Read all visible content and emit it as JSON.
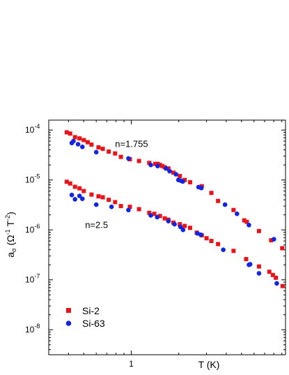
{
  "chart_data": {
    "type": "scatter",
    "x_scale": "log",
    "y_scale": "log",
    "xlim": [
      0.3,
      9.5
    ],
    "ylim": [
      3.16e-09,
      0.000158
    ],
    "x_major_ticks": [
      {
        "value": 1,
        "label": "1"
      }
    ],
    "y_major_ticks": [
      {
        "value": 0.0001,
        "mant": "10",
        "exp": "-4"
      },
      {
        "value": 1e-05,
        "mant": "10",
        "exp": "-5"
      },
      {
        "value": 1e-06,
        "mant": "10",
        "exp": "-6"
      },
      {
        "value": 1e-07,
        "mant": "10",
        "exp": "-7"
      },
      {
        "value": 1e-08,
        "mant": "10",
        "exp": "-8"
      }
    ],
    "xlabel": "T (K)",
    "ylabel": {
      "a": "a",
      "sub": "σ",
      "open": " (Ω",
      "exp1": "-1",
      "mid": " T",
      "exp2": "-2",
      "close": ")"
    },
    "annotations": [
      {
        "text": "n=1.755",
        "x": 0.79,
        "y": 4.6e-05
      },
      {
        "text": "n=2.5",
        "x": 0.51,
        "y": 1.1e-06
      }
    ],
    "legend": {
      "position": "bottom-left"
    },
    "series": [
      {
        "name": "Si-2",
        "marker": "square",
        "color": "#e8141b",
        "points": [
          [
            0.39,
            9e-05
          ],
          [
            0.41,
            8.5e-05
          ],
          [
            0.44,
            7.2e-05
          ],
          [
            0.47,
            6.8e-05
          ],
          [
            0.5,
            6.3e-05
          ],
          [
            0.53,
            5.7e-05
          ],
          [
            0.56,
            5.1e-05
          ],
          [
            0.62,
            4.5e-05
          ],
          [
            0.66,
            4.2e-05
          ],
          [
            0.72,
            3.7e-05
          ],
          [
            0.79,
            3.4e-05
          ],
          [
            0.86,
            2.9e-05
          ],
          [
            0.98,
            2.6e-05
          ],
          [
            1.12,
            2.4e-05
          ],
          [
            1.3,
            2.2e-05
          ],
          [
            1.42,
            2.1e-05
          ],
          [
            1.47,
            2.1e-05
          ],
          [
            1.52,
            2e-05
          ],
          [
            1.57,
            1.9e-05
          ],
          [
            1.63,
            1.8e-05
          ],
          [
            1.72,
            1.7e-05
          ],
          [
            1.85,
            1.4e-05
          ],
          [
            2.03,
            1.2e-05
          ],
          [
            2.18,
            1e-05
          ],
          [
            2.36,
            9e-06
          ],
          [
            2.8,
            7.5e-06
          ],
          [
            3.22,
            5.5e-06
          ],
          [
            3.55,
            3.8e-06
          ],
          [
            4.45,
            2.5e-06
          ],
          [
            5.2,
            1.55e-06
          ],
          [
            5.4,
            1.45e-06
          ],
          [
            6.45,
            9.5e-07
          ],
          [
            7.7,
            6.2e-07
          ],
          [
            9.05,
            4.3e-07
          ],
          [
            0.39,
            9.2e-06
          ],
          [
            0.41,
            8.5e-06
          ],
          [
            0.44,
            7.3e-06
          ],
          [
            0.47,
            6.8e-06
          ],
          [
            0.5,
            6e-06
          ],
          [
            0.56,
            5.1e-06
          ],
          [
            0.62,
            4.7e-06
          ],
          [
            0.66,
            4.5e-06
          ],
          [
            0.72,
            4e-06
          ],
          [
            0.79,
            3.6e-06
          ],
          [
            0.86,
            3e-06
          ],
          [
            0.98,
            2.9e-06
          ],
          [
            1.12,
            2.6e-06
          ],
          [
            1.3,
            2.2e-06
          ],
          [
            1.4,
            2.1e-06
          ],
          [
            1.52,
            1.9e-06
          ],
          [
            1.63,
            1.7e-06
          ],
          [
            1.72,
            1.6e-06
          ],
          [
            1.85,
            1.4e-06
          ],
          [
            2.03,
            1.3e-06
          ],
          [
            2.18,
            1.2e-06
          ],
          [
            2.36,
            1.1e-06
          ],
          [
            2.6,
            8.8e-07
          ],
          [
            2.8,
            7.8e-07
          ],
          [
            3.0,
            6.8e-07
          ],
          [
            3.22,
            6e-07
          ],
          [
            3.55,
            5.2e-07
          ],
          [
            4.45,
            3.8e-07
          ],
          [
            5.35,
            2.6e-07
          ],
          [
            6.45,
            1.85e-07
          ],
          [
            7.5,
            1.45e-07
          ],
          [
            7.9,
            1.25e-07
          ],
          [
            8.25,
            1.1e-07
          ],
          [
            9.1,
            7.5e-08
          ]
        ]
      },
      {
        "name": "Si-63",
        "marker": "circle",
        "color": "#1424e0",
        "points": [
          [
            0.42,
            5.5e-05
          ],
          [
            0.43,
            6e-05
          ],
          [
            0.46,
            5.2e-05
          ],
          [
            0.49,
            4.6e-05
          ],
          [
            0.6,
            3.6e-05
          ],
          [
            0.96,
            2.7e-05
          ],
          [
            1.33,
            2e-05
          ],
          [
            1.47,
            1.9e-05
          ],
          [
            1.66,
            1.7e-05
          ],
          [
            1.75,
            1.5e-05
          ],
          [
            1.92,
            1.3e-05
          ],
          [
            1.99,
            1e-05
          ],
          [
            2.06,
            9.7e-06
          ],
          [
            2.12,
            9.3e-06
          ],
          [
            2.67,
            7.2e-06
          ],
          [
            2.78,
            6.9e-06
          ],
          [
            3.93,
            3.2e-06
          ],
          [
            4.68,
            2.1e-06
          ],
          [
            5.57,
            1.25e-06
          ],
          [
            8.02,
            6.5e-07
          ],
          [
            0.42,
            5e-06
          ],
          [
            0.44,
            4.1e-06
          ],
          [
            0.47,
            4.8e-06
          ],
          [
            0.49,
            4.2e-06
          ],
          [
            0.6,
            3.2e-06
          ],
          [
            0.75,
            2.9e-06
          ],
          [
            0.96,
            2.5e-06
          ],
          [
            1.33,
            1.95e-06
          ],
          [
            1.46,
            1.8e-06
          ],
          [
            1.72,
            1.5e-06
          ],
          [
            1.88,
            1.3e-06
          ],
          [
            2.05,
            1.15e-06
          ],
          [
            2.13,
            1e-06
          ],
          [
            2.63,
            8.5e-07
          ],
          [
            2.76,
            8e-07
          ],
          [
            3.83,
            4e-07
          ],
          [
            5.57,
            2e-07
          ],
          [
            5.67,
            2.05e-07
          ],
          [
            6.45,
            1.35e-07
          ],
          [
            8.36,
            8.5e-08
          ]
        ]
      }
    ]
  }
}
